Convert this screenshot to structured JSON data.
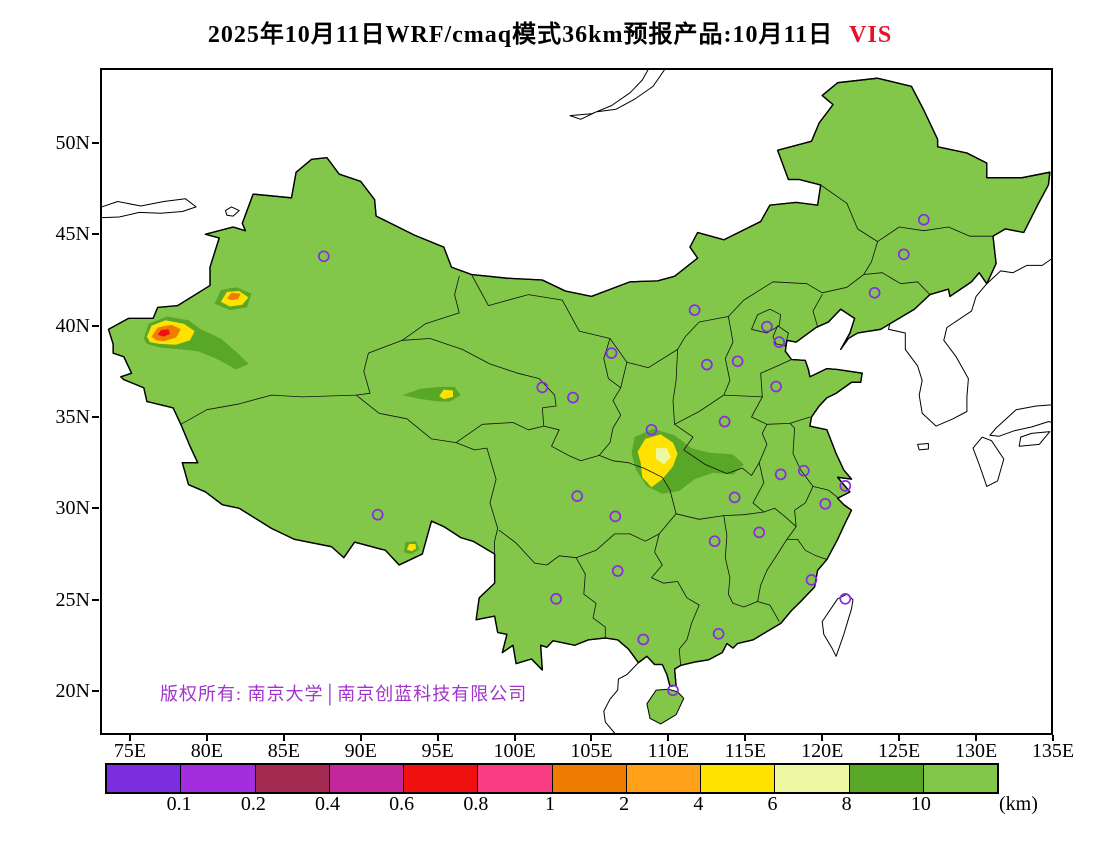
{
  "title": {
    "main": "2025年10月11日WRF/cmaq模式36km预报产品:10月11日",
    "vis": "VIS",
    "vis_color": "#e8112d"
  },
  "copyright": {
    "text": "版权所有: 南京大学│南京创蓝科技有限公司",
    "color": "#a233cc"
  },
  "axes": {
    "y": [
      {
        "label": "50N",
        "lat": 50
      },
      {
        "label": "45N",
        "lat": 45
      },
      {
        "label": "40N",
        "lat": 40
      },
      {
        "label": "35N",
        "lat": 35
      },
      {
        "label": "30N",
        "lat": 30
      },
      {
        "label": "25N",
        "lat": 25
      },
      {
        "label": "20N",
        "lat": 20
      }
    ],
    "x": [
      {
        "label": "75E",
        "lon": 75
      },
      {
        "label": "80E",
        "lon": 80
      },
      {
        "label": "85E",
        "lon": 85
      },
      {
        "label": "90E",
        "lon": 90
      },
      {
        "label": "95E",
        "lon": 95
      },
      {
        "label": "100E",
        "lon": 100
      },
      {
        "label": "105E",
        "lon": 105
      },
      {
        "label": "110E",
        "lon": 110
      },
      {
        "label": "115E",
        "lon": 115
      },
      {
        "label": "120E",
        "lon": 120
      },
      {
        "label": "125E",
        "lon": 125
      },
      {
        "label": "130E",
        "lon": 130
      },
      {
        "label": "135E",
        "lon": 135
      }
    ]
  },
  "colorbar": {
    "unit": "(km)",
    "labels": [
      "0.1",
      "0.2",
      "0.4",
      "0.6",
      "0.8",
      "1",
      "2",
      "4",
      "6",
      "8",
      "10"
    ],
    "colors": [
      "#7b2ee0",
      "#a32ee0",
      "#a32a50",
      "#c4279b",
      "#f01010",
      "#fa3c82",
      "#ef7c00",
      "#ffa21a",
      "#ffe200",
      "#eef7a2",
      "#59a727",
      "#82c64a"
    ]
  },
  "map": {
    "land_color": "#82c64a",
    "outline_color": "#000000",
    "province_color": "#111111",
    "coast_color": "#000000",
    "marker_color": "#8a2be2",
    "patch_colors": {
      "dark": "#59a727",
      "yellow": "#ffe200",
      "orange": "#ef7c00",
      "red": "#f01010",
      "pale": "#eef7a2"
    },
    "cities": [
      [
        87.6,
        43.8
      ],
      [
        126.6,
        45.8
      ],
      [
        125.3,
        43.9
      ],
      [
        123.4,
        41.8
      ],
      [
        111.7,
        40.85
      ],
      [
        116.4,
        39.95
      ],
      [
        117.2,
        39.1
      ],
      [
        114.5,
        38.05
      ],
      [
        112.5,
        37.87
      ],
      [
        106.3,
        38.5
      ],
      [
        101.8,
        36.62
      ],
      [
        103.8,
        36.06
      ],
      [
        117.0,
        36.67
      ],
      [
        113.65,
        34.75
      ],
      [
        108.9,
        34.3
      ],
      [
        118.8,
        32.06
      ],
      [
        121.5,
        31.23
      ],
      [
        117.3,
        31.86
      ],
      [
        120.2,
        30.25
      ],
      [
        114.3,
        30.6
      ],
      [
        104.07,
        30.67
      ],
      [
        106.55,
        29.56
      ],
      [
        91.1,
        29.65
      ],
      [
        113.0,
        28.2
      ],
      [
        115.9,
        28.68
      ],
      [
        119.3,
        26.08
      ],
      [
        106.7,
        26.57
      ],
      [
        102.7,
        25.04
      ],
      [
        121.5,
        25.05
      ],
      [
        113.26,
        23.13
      ],
      [
        108.37,
        22.82
      ],
      [
        110.3,
        20.04
      ]
    ]
  }
}
